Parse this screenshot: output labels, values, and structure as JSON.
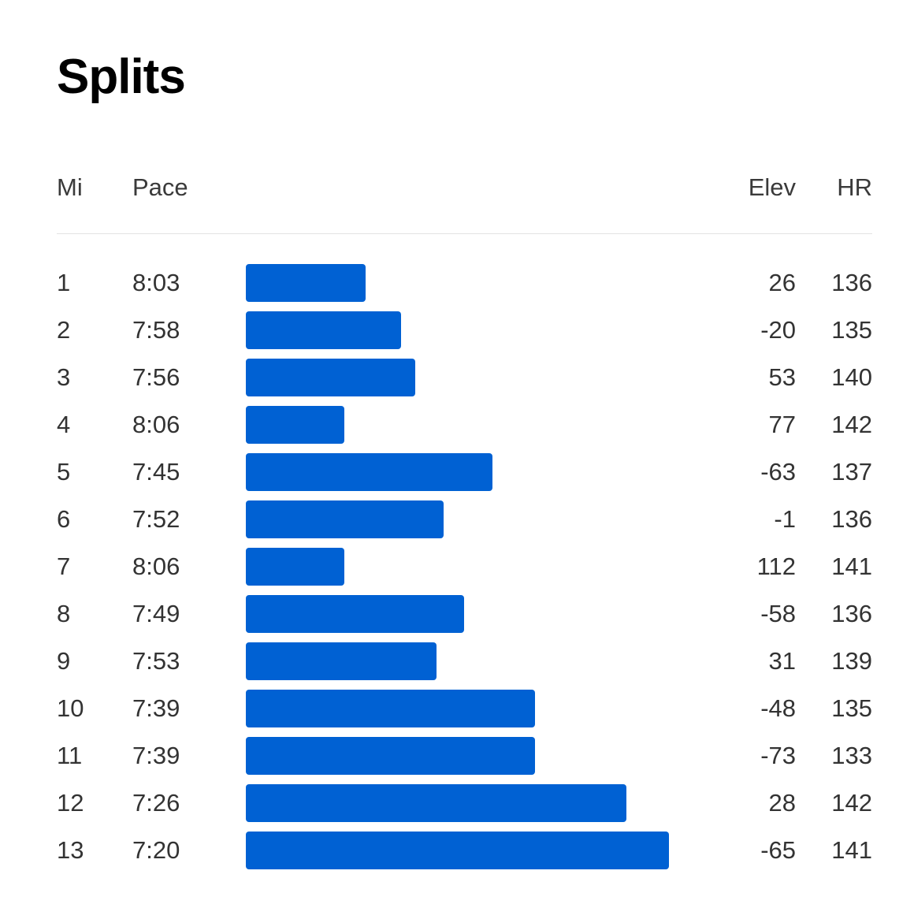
{
  "title": "Splits",
  "colors": {
    "bar": "#0061d3",
    "divider": "#e3e3e3"
  },
  "headers": {
    "mi": "Mi",
    "pace": "Pace",
    "elev": "Elev",
    "hr": "HR"
  },
  "splits": [
    {
      "mi": "1",
      "pace": "8:03",
      "pace_seconds": 483,
      "elev": "26",
      "hr": "136"
    },
    {
      "mi": "2",
      "pace": "7:58",
      "pace_seconds": 478,
      "elev": "-20",
      "hr": "135"
    },
    {
      "mi": "3",
      "pace": "7:56",
      "pace_seconds": 476,
      "elev": "53",
      "hr": "140"
    },
    {
      "mi": "4",
      "pace": "8:06",
      "pace_seconds": 486,
      "elev": "77",
      "hr": "142"
    },
    {
      "mi": "5",
      "pace": "7:45",
      "pace_seconds": 465,
      "elev": "-63",
      "hr": "137"
    },
    {
      "mi": "6",
      "pace": "7:52",
      "pace_seconds": 472,
      "elev": "-1",
      "hr": "136"
    },
    {
      "mi": "7",
      "pace": "8:06",
      "pace_seconds": 486,
      "elev": "112",
      "hr": "141"
    },
    {
      "mi": "8",
      "pace": "7:49",
      "pace_seconds": 469,
      "elev": "-58",
      "hr": "136"
    },
    {
      "mi": "9",
      "pace": "7:53",
      "pace_seconds": 473,
      "elev": "31",
      "hr": "139"
    },
    {
      "mi": "10",
      "pace": "7:39",
      "pace_seconds": 459,
      "elev": "-48",
      "hr": "135"
    },
    {
      "mi": "11",
      "pace": "7:39",
      "pace_seconds": 459,
      "elev": "-73",
      "hr": "133"
    },
    {
      "mi": "12",
      "pace": "7:26",
      "pace_seconds": 446,
      "elev": "28",
      "hr": "142"
    },
    {
      "mi": "13",
      "pace": "7:20",
      "pace_seconds": 440,
      "elev": "-65",
      "hr": "141"
    }
  ]
}
